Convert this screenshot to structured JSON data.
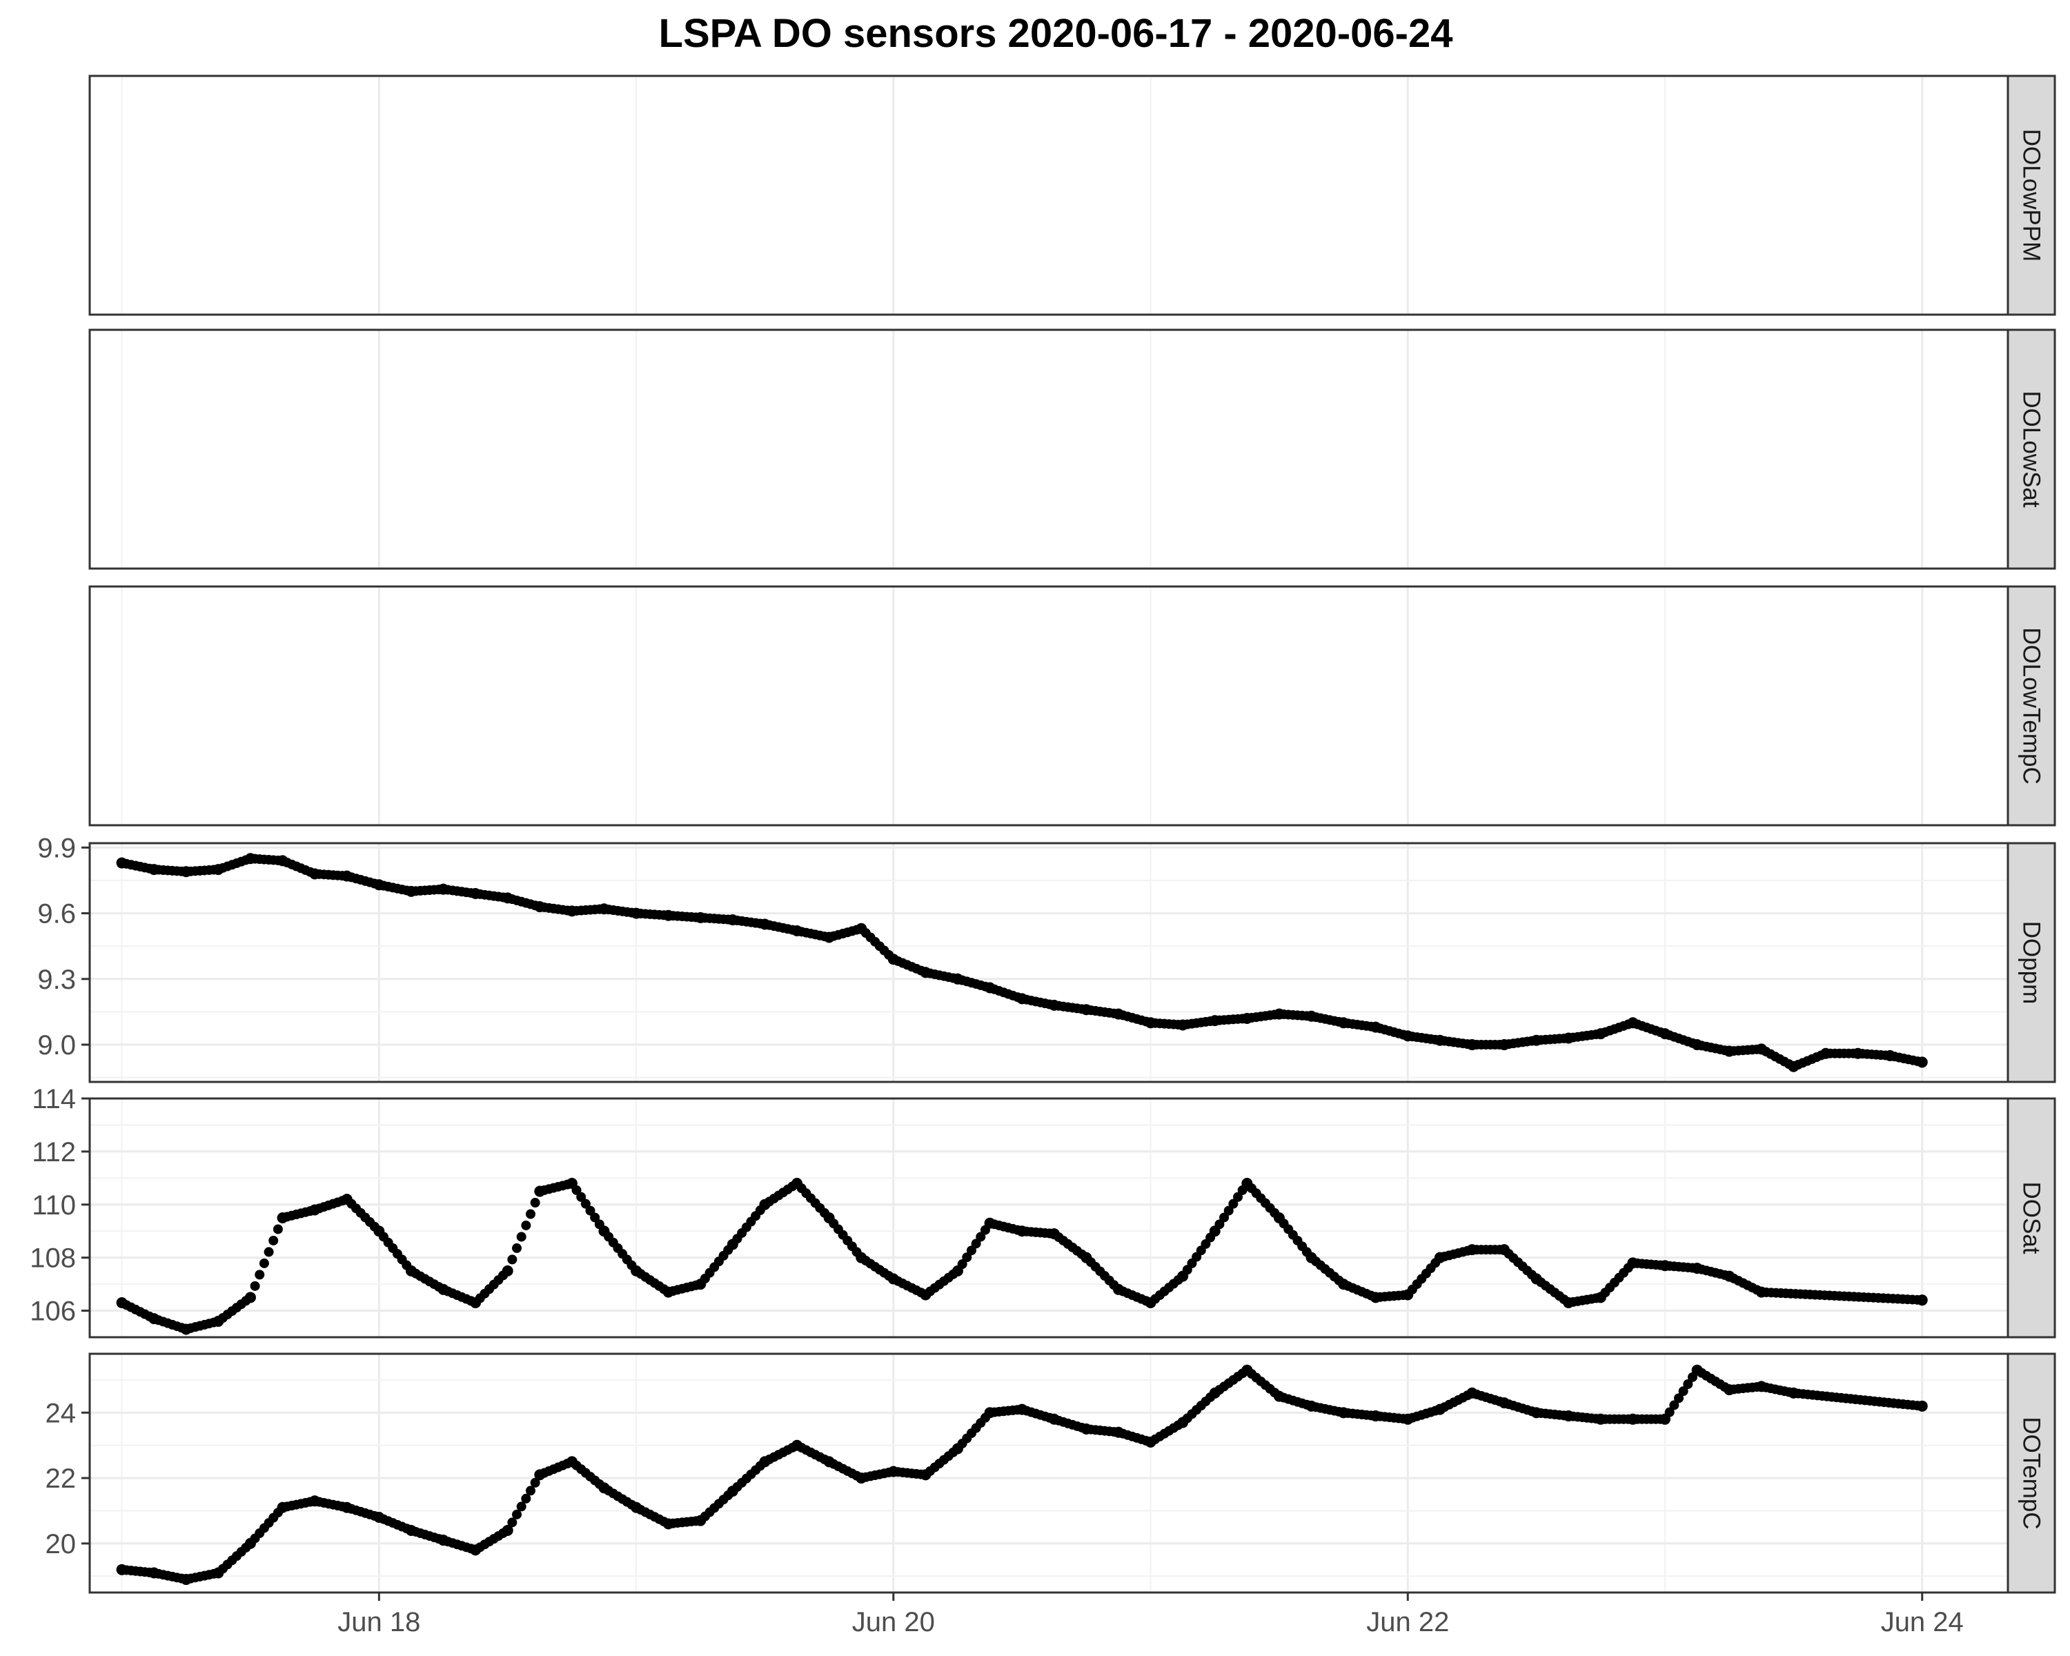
{
  "chart_data": {
    "type": "scatter",
    "title": "LSPA DO sensors 2020-06-17 - 2020-06-24",
    "xlabel": "",
    "ylabel": "",
    "x_axis": {
      "unit": "datetime",
      "range": [
        "2020-06-16T21:00",
        "2020-06-24T08:00"
      ],
      "ticks": [
        "2020-06-18",
        "2020-06-20",
        "2020-06-22",
        "2020-06-24"
      ],
      "tick_labels": [
        "Jun 18",
        "Jun 20",
        "Jun 22",
        "Jun 24"
      ]
    },
    "grid": true,
    "point_color": "#000000",
    "panels": [
      {
        "name": "DOLowPPM",
        "ylim": null,
        "yticks": [],
        "points": []
      },
      {
        "name": "DOLowSat",
        "ylim": null,
        "yticks": [],
        "points": []
      },
      {
        "name": "DOLowTempC",
        "ylim": null,
        "yticks": [],
        "points": []
      },
      {
        "name": "DOppm",
        "ylim": [
          8.83,
          9.92
        ],
        "yticks": [
          9.0,
          9.3,
          9.6,
          9.9
        ],
        "ytick_labels": [
          "9.0",
          "9.3",
          "9.6",
          "9.9"
        ],
        "points": [
          [
            "2020-06-17T00:00",
            9.83
          ],
          [
            "2020-06-17T03:00",
            9.8
          ],
          [
            "2020-06-17T06:00",
            9.79
          ],
          [
            "2020-06-17T09:00",
            9.8
          ],
          [
            "2020-06-17T12:00",
            9.85
          ],
          [
            "2020-06-17T15:00",
            9.84
          ],
          [
            "2020-06-17T18:00",
            9.78
          ],
          [
            "2020-06-17T21:00",
            9.77
          ],
          [
            "2020-06-18T00:00",
            9.73
          ],
          [
            "2020-06-18T03:00",
            9.7
          ],
          [
            "2020-06-18T06:00",
            9.71
          ],
          [
            "2020-06-18T09:00",
            9.69
          ],
          [
            "2020-06-18T12:00",
            9.67
          ],
          [
            "2020-06-18T15:00",
            9.63
          ],
          [
            "2020-06-18T18:00",
            9.61
          ],
          [
            "2020-06-18T21:00",
            9.62
          ],
          [
            "2020-06-19T00:00",
            9.6
          ],
          [
            "2020-06-19T03:00",
            9.59
          ],
          [
            "2020-06-19T06:00",
            9.58
          ],
          [
            "2020-06-19T09:00",
            9.57
          ],
          [
            "2020-06-19T12:00",
            9.55
          ],
          [
            "2020-06-19T15:00",
            9.52
          ],
          [
            "2020-06-19T18:00",
            9.49
          ],
          [
            "2020-06-19T21:00",
            9.53
          ],
          [
            "2020-06-20T00:00",
            9.39
          ],
          [
            "2020-06-20T03:00",
            9.33
          ],
          [
            "2020-06-20T06:00",
            9.3
          ],
          [
            "2020-06-20T09:00",
            9.26
          ],
          [
            "2020-06-20T12:00",
            9.21
          ],
          [
            "2020-06-20T15:00",
            9.18
          ],
          [
            "2020-06-20T18:00",
            9.16
          ],
          [
            "2020-06-20T21:00",
            9.14
          ],
          [
            "2020-06-21T00:00",
            9.1
          ],
          [
            "2020-06-21T03:00",
            9.09
          ],
          [
            "2020-06-21T06:00",
            9.11
          ],
          [
            "2020-06-21T09:00",
            9.12
          ],
          [
            "2020-06-21T12:00",
            9.14
          ],
          [
            "2020-06-21T15:00",
            9.13
          ],
          [
            "2020-06-21T18:00",
            9.1
          ],
          [
            "2020-06-21T21:00",
            9.08
          ],
          [
            "2020-06-22T00:00",
            9.04
          ],
          [
            "2020-06-22T03:00",
            9.02
          ],
          [
            "2020-06-22T06:00",
            9.0
          ],
          [
            "2020-06-22T09:00",
            9.0
          ],
          [
            "2020-06-22T12:00",
            9.02
          ],
          [
            "2020-06-22T15:00",
            9.03
          ],
          [
            "2020-06-22T18:00",
            9.05
          ],
          [
            "2020-06-22T21:00",
            9.1
          ],
          [
            "2020-06-23T00:00",
            9.05
          ],
          [
            "2020-06-23T03:00",
            9.0
          ],
          [
            "2020-06-23T06:00",
            8.97
          ],
          [
            "2020-06-23T09:00",
            8.98
          ],
          [
            "2020-06-23T12:00",
            8.9
          ],
          [
            "2020-06-23T15:00",
            8.96
          ],
          [
            "2020-06-23T18:00",
            8.96
          ],
          [
            "2020-06-23T21:00",
            8.95
          ],
          [
            "2020-06-24T00:00",
            8.92
          ]
        ]
      },
      {
        "name": "DOSat",
        "ylim": [
          105.0,
          114.0
        ],
        "yticks": [
          106,
          108,
          110,
          112,
          114
        ],
        "ytick_labels": [
          "106",
          "108",
          "110",
          "112",
          "114"
        ],
        "points": [
          [
            "2020-06-17T00:00",
            106.3
          ],
          [
            "2020-06-17T03:00",
            105.7
          ],
          [
            "2020-06-17T06:00",
            105.3
          ],
          [
            "2020-06-17T09:00",
            105.6
          ],
          [
            "2020-06-17T12:00",
            106.5
          ],
          [
            "2020-06-17T15:00",
            109.5
          ],
          [
            "2020-06-17T18:00",
            109.8
          ],
          [
            "2020-06-17T21:00",
            110.2
          ],
          [
            "2020-06-18T00:00",
            109.0
          ],
          [
            "2020-06-18T03:00",
            107.5
          ],
          [
            "2020-06-18T06:00",
            106.8
          ],
          [
            "2020-06-18T09:00",
            106.3
          ],
          [
            "2020-06-18T12:00",
            107.5
          ],
          [
            "2020-06-18T15:00",
            110.5
          ],
          [
            "2020-06-18T18:00",
            110.8
          ],
          [
            "2020-06-18T21:00",
            109.0
          ],
          [
            "2020-06-19T00:00",
            107.5
          ],
          [
            "2020-06-19T03:00",
            106.7
          ],
          [
            "2020-06-19T06:00",
            107.0
          ],
          [
            "2020-06-19T09:00",
            108.5
          ],
          [
            "2020-06-19T12:00",
            110.0
          ],
          [
            "2020-06-19T15:00",
            110.8
          ],
          [
            "2020-06-19T18:00",
            109.5
          ],
          [
            "2020-06-19T21:00",
            108.0
          ],
          [
            "2020-06-20T00:00",
            107.2
          ],
          [
            "2020-06-20T03:00",
            106.6
          ],
          [
            "2020-06-20T06:00",
            107.5
          ],
          [
            "2020-06-20T09:00",
            109.3
          ],
          [
            "2020-06-20T12:00",
            109.0
          ],
          [
            "2020-06-20T15:00",
            108.9
          ],
          [
            "2020-06-20T18:00",
            108.0
          ],
          [
            "2020-06-20T21:00",
            106.8
          ],
          [
            "2020-06-21T00:00",
            106.3
          ],
          [
            "2020-06-21T03:00",
            107.3
          ],
          [
            "2020-06-21T06:00",
            109.0
          ],
          [
            "2020-06-21T09:00",
            110.8
          ],
          [
            "2020-06-21T12:00",
            109.5
          ],
          [
            "2020-06-21T15:00",
            108.0
          ],
          [
            "2020-06-21T18:00",
            107.0
          ],
          [
            "2020-06-21T21:00",
            106.5
          ],
          [
            "2020-06-22T00:00",
            106.6
          ],
          [
            "2020-06-22T03:00",
            108.0
          ],
          [
            "2020-06-22T06:00",
            108.3
          ],
          [
            "2020-06-22T09:00",
            108.3
          ],
          [
            "2020-06-22T12:00",
            107.2
          ],
          [
            "2020-06-22T15:00",
            106.3
          ],
          [
            "2020-06-22T18:00",
            106.5
          ],
          [
            "2020-06-22T21:00",
            107.8
          ],
          [
            "2020-06-23T00:00",
            107.7
          ],
          [
            "2020-06-23T03:00",
            107.6
          ],
          [
            "2020-06-23T06:00",
            107.3
          ],
          [
            "2020-06-23T09:00",
            106.7
          ],
          [
            "2020-06-24T00:00",
            106.4
          ]
        ]
      },
      {
        "name": "DOTempC",
        "ylim": [
          18.5,
          25.8
        ],
        "yticks": [
          20,
          22,
          24
        ],
        "ytick_labels": [
          "20",
          "22",
          "24"
        ],
        "points": [
          [
            "2020-06-17T00:00",
            19.2
          ],
          [
            "2020-06-17T03:00",
            19.1
          ],
          [
            "2020-06-17T06:00",
            18.9
          ],
          [
            "2020-06-17T09:00",
            19.1
          ],
          [
            "2020-06-17T12:00",
            20.0
          ],
          [
            "2020-06-17T15:00",
            21.1
          ],
          [
            "2020-06-17T18:00",
            21.3
          ],
          [
            "2020-06-17T21:00",
            21.1
          ],
          [
            "2020-06-18T00:00",
            20.8
          ],
          [
            "2020-06-18T03:00",
            20.4
          ],
          [
            "2020-06-18T06:00",
            20.1
          ],
          [
            "2020-06-18T09:00",
            19.8
          ],
          [
            "2020-06-18T12:00",
            20.4
          ],
          [
            "2020-06-18T15:00",
            22.1
          ],
          [
            "2020-06-18T18:00",
            22.5
          ],
          [
            "2020-06-18T21:00",
            21.7
          ],
          [
            "2020-06-19T00:00",
            21.1
          ],
          [
            "2020-06-19T03:00",
            20.6
          ],
          [
            "2020-06-19T06:00",
            20.7
          ],
          [
            "2020-06-19T09:00",
            21.6
          ],
          [
            "2020-06-19T12:00",
            22.5
          ],
          [
            "2020-06-19T15:00",
            23.0
          ],
          [
            "2020-06-19T18:00",
            22.5
          ],
          [
            "2020-06-19T21:00",
            22.0
          ],
          [
            "2020-06-20T00:00",
            22.2
          ],
          [
            "2020-06-20T03:00",
            22.1
          ],
          [
            "2020-06-20T06:00",
            22.9
          ],
          [
            "2020-06-20T09:00",
            24.0
          ],
          [
            "2020-06-20T12:00",
            24.1
          ],
          [
            "2020-06-20T15:00",
            23.8
          ],
          [
            "2020-06-20T18:00",
            23.5
          ],
          [
            "2020-06-20T21:00",
            23.4
          ],
          [
            "2020-06-21T00:00",
            23.1
          ],
          [
            "2020-06-21T03:00",
            23.7
          ],
          [
            "2020-06-21T06:00",
            24.6
          ],
          [
            "2020-06-21T09:00",
            25.3
          ],
          [
            "2020-06-21T12:00",
            24.5
          ],
          [
            "2020-06-21T15:00",
            24.2
          ],
          [
            "2020-06-21T18:00",
            24.0
          ],
          [
            "2020-06-21T21:00",
            23.9
          ],
          [
            "2020-06-22T00:00",
            23.8
          ],
          [
            "2020-06-22T03:00",
            24.1
          ],
          [
            "2020-06-22T06:00",
            24.6
          ],
          [
            "2020-06-22T09:00",
            24.3
          ],
          [
            "2020-06-22T12:00",
            24.0
          ],
          [
            "2020-06-22T15:00",
            23.9
          ],
          [
            "2020-06-22T18:00",
            23.8
          ],
          [
            "2020-06-22T21:00",
            23.8
          ],
          [
            "2020-06-23T00:00",
            23.8
          ],
          [
            "2020-06-23T03:00",
            25.3
          ],
          [
            "2020-06-23T06:00",
            24.7
          ],
          [
            "2020-06-23T09:00",
            24.8
          ],
          [
            "2020-06-23T12:00",
            24.6
          ],
          [
            "2020-06-24T00:00",
            24.2
          ]
        ]
      }
    ]
  }
}
